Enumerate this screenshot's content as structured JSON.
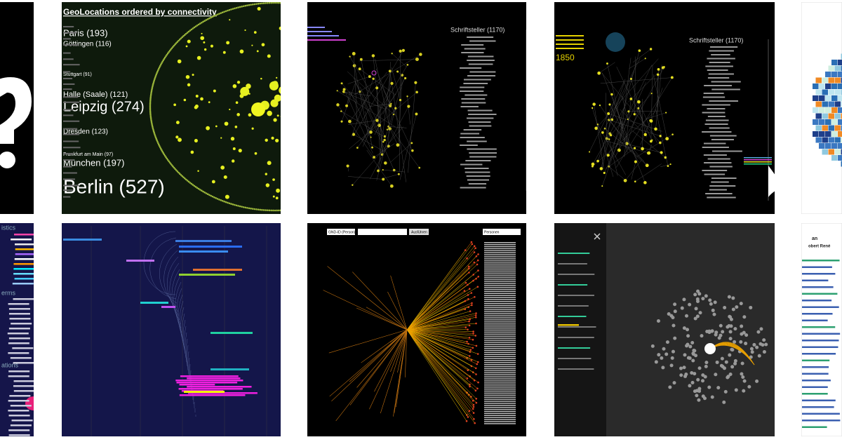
{
  "tiles": [
    {
      "title": "GeoLocations ordered by connectivity",
      "labels": [
        "Paris (193)",
        "Göttingen (116)",
        "Stuttgart (91)",
        "Halle (Saale) (121)",
        "Leipzig (274)",
        "Dresden (123)",
        "Frankfurt am Main (97)",
        "München (197)",
        "Berlin (527)"
      ]
    },
    {
      "heading": "Schriftsteller (1170)"
    },
    {
      "heading": "Schriftsteller (1170)",
      "year": "1850"
    },
    {
      "fields": [
        "GND-ID (Person)",
        "Ausführen",
        "Personen"
      ]
    },
    {
      "sections": [
        "istics",
        "erms",
        "ations"
      ]
    },
    {
      "lines": [
        "an",
        "obert René"
      ]
    }
  ]
}
